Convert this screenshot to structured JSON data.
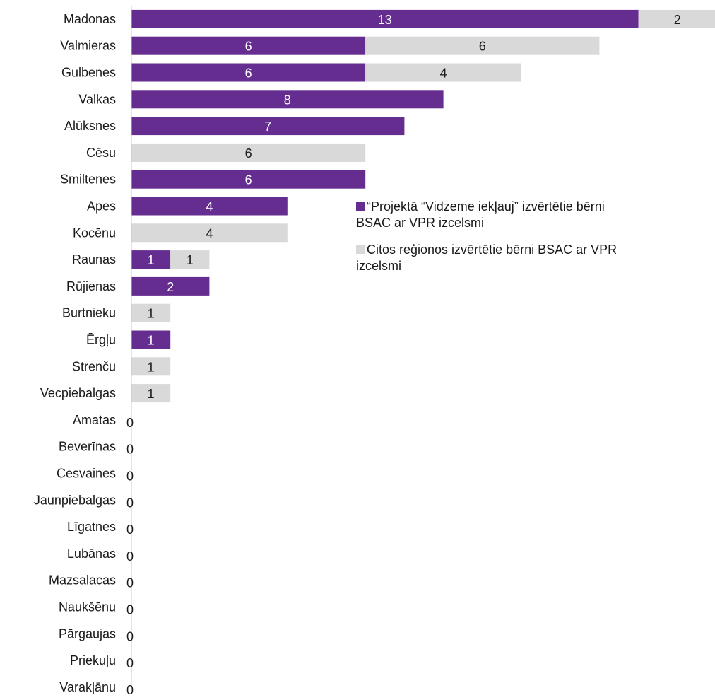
{
  "chart_data": {
    "type": "bar",
    "orientation": "horizontal",
    "stacked": true,
    "title": "",
    "xlabel": "",
    "ylabel": "",
    "categories": [
      "Madonas",
      "Valmieras",
      "Gulbenes",
      "Valkas",
      "Alūksnes",
      "Cēsu",
      "Smiltenes",
      "Apes",
      "Kocēnu",
      "Raunas",
      "Rūjienas",
      "Burtnieku",
      "Ērgļu",
      "Strenču",
      "Vecpiebalgas",
      "Amatas",
      "Beverīnas",
      "Cesvaines",
      "Jaunpiebalgas",
      "Līgatnes",
      "Lubānas",
      "Mazsalacas",
      "Naukšēnu",
      "Pārgaujas",
      "Priekuļu",
      "Varakļānu"
    ],
    "series": [
      {
        "name_lines": [
          "“Projektā “Vidzeme iekļauj” izvērtētie bērni",
          "BSAC ar VPR izcelsmi"
        ],
        "color": "#662d91",
        "values": [
          13,
          6,
          6,
          8,
          7,
          0,
          6,
          4,
          0,
          1,
          2,
          0,
          1,
          0,
          0,
          0,
          0,
          0,
          0,
          0,
          0,
          0,
          0,
          0,
          0,
          0
        ]
      },
      {
        "name_lines": [
          "Citos reģionos izvērtētie bērni BSAC ar VPR",
          "izcelsmi"
        ],
        "color": "#d9d9d9",
        "values": [
          2,
          6,
          4,
          0,
          0,
          6,
          0,
          0,
          4,
          1,
          0,
          1,
          0,
          1,
          1,
          0,
          0,
          0,
          0,
          0,
          0,
          0,
          0,
          0,
          0,
          0
        ]
      }
    ],
    "zero_label": "0",
    "xlim": [
      0,
      15.1
    ],
    "grid": false,
    "legend_position": "right-middle"
  }
}
